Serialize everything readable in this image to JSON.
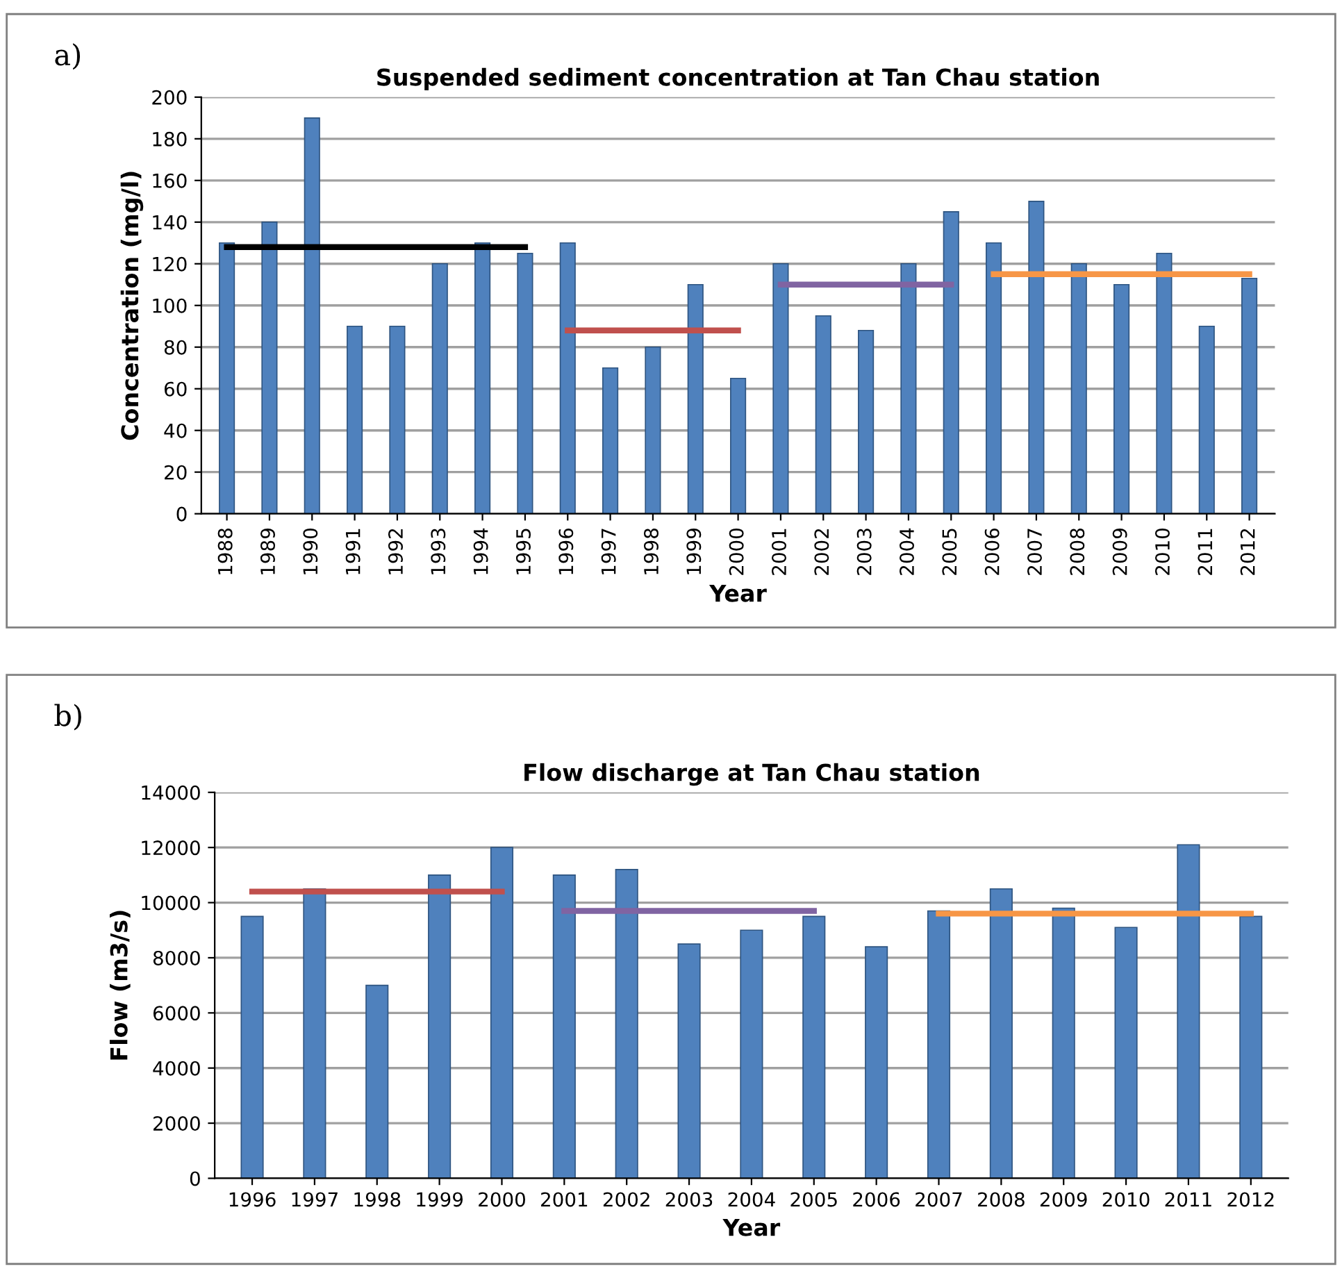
{
  "chart_data": [
    {
      "type": "bar",
      "title": "Suspended sediment concentration at Tan Chau station",
      "xlabel": "Year",
      "ylabel": "Concentration (mg/l)",
      "annotations": [
        "a)"
      ],
      "categories": [
        "1988",
        "1989",
        "1990",
        "1991",
        "1992",
        "1993",
        "1994",
        "1995",
        "1996",
        "1997",
        "1998",
        "1999",
        "2000",
        "2001",
        "2002",
        "2003",
        "2004",
        "2005",
        "2006",
        "2007",
        "2008",
        "2009",
        "2010",
        "2011",
        "2012"
      ],
      "series": [
        {
          "color": "#4f81bd",
          "values": [
            130,
            140,
            190,
            90,
            90,
            120,
            130,
            125,
            130,
            70,
            80,
            110,
            65,
            120,
            95,
            88,
            120,
            145,
            130,
            150,
            120,
            110,
            125,
            90,
            113
          ]
        },
        {
          "type": "line",
          "color": "#000000",
          "values": [
            128,
            128,
            128,
            128,
            128,
            128,
            128,
            128,
            null,
            null,
            null,
            null,
            null,
            null,
            null,
            null,
            null,
            null,
            null,
            null,
            null,
            null,
            null,
            null,
            null
          ]
        },
        {
          "type": "line",
          "color": "#c0504d",
          "values": [
            null,
            null,
            null,
            null,
            null,
            null,
            null,
            null,
            88,
            88,
            88,
            88,
            88,
            null,
            null,
            null,
            null,
            null,
            null,
            null,
            null,
            null,
            null,
            null,
            null
          ]
        },
        {
          "type": "line",
          "color": "#8064a2",
          "values": [
            null,
            null,
            null,
            null,
            null,
            null,
            null,
            null,
            null,
            null,
            null,
            null,
            null,
            110,
            110,
            110,
            110,
            110,
            null,
            null,
            null,
            null,
            null,
            null,
            null
          ]
        },
        {
          "type": "line",
          "color": "#f79646",
          "values": [
            null,
            null,
            null,
            null,
            null,
            null,
            null,
            null,
            null,
            null,
            null,
            null,
            null,
            null,
            null,
            null,
            null,
            null,
            115,
            115,
            115,
            115,
            115,
            115,
            115
          ]
        }
      ],
      "ylim": [
        0,
        200
      ],
      "yticks": [
        0,
        20,
        40,
        60,
        80,
        100,
        120,
        140,
        160,
        180,
        200
      ],
      "grid": "y",
      "legend": false,
      "marker": "none",
      "line_style": "solid"
    },
    {
      "type": "bar",
      "title": "Flow discharge at Tan Chau station",
      "xlabel": "Year",
      "ylabel": "Flow (m3/s)",
      "annotations": [
        "b)"
      ],
      "categories": [
        "1996",
        "1997",
        "1998",
        "1999",
        "2000",
        "2001",
        "2002",
        "2003",
        "2004",
        "2005",
        "2006",
        "2007",
        "2008",
        "2009",
        "2010",
        "2011",
        "2012"
      ],
      "series": [
        {
          "color": "#4f81bd",
          "values": [
            9500,
            10500,
            7000,
            11000,
            12000,
            11000,
            11200,
            8500,
            9000,
            9500,
            8400,
            9700,
            10500,
            9800,
            9100,
            12100,
            9500
          ]
        },
        {
          "type": "line",
          "color": "#c0504d",
          "values": [
            10400,
            10400,
            10400,
            10400,
            10400,
            null,
            null,
            null,
            null,
            null,
            null,
            null,
            null,
            null,
            null,
            null,
            null
          ]
        },
        {
          "type": "line",
          "color": "#8064a2",
          "values": [
            null,
            null,
            null,
            null,
            null,
            9700,
            9700,
            9700,
            9700,
            9700,
            null,
            null,
            null,
            null,
            null,
            null,
            null
          ]
        },
        {
          "type": "line",
          "color": "#f79646",
          "values": [
            null,
            null,
            null,
            null,
            null,
            null,
            null,
            null,
            null,
            null,
            null,
            9600,
            9600,
            9600,
            9600,
            9600,
            9600
          ]
        }
      ],
      "ylim": [
        0,
        14000
      ],
      "yticks": [
        0,
        2000,
        4000,
        6000,
        8000,
        10000,
        12000,
        14000
      ],
      "grid": "y",
      "legend": false,
      "marker": "none",
      "line_style": "solid"
    }
  ]
}
